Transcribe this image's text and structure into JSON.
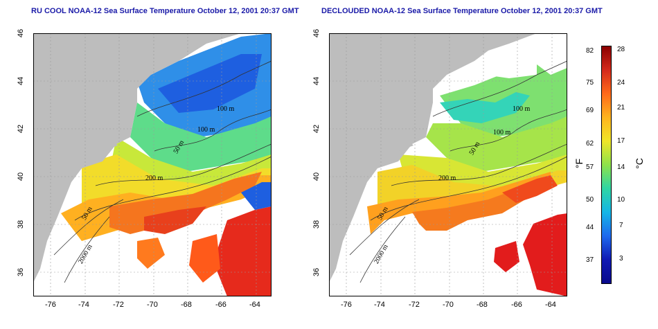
{
  "titles": {
    "left": "RU COOL NOAA-12 Sea Surface Temperature October 12, 2001 20:37 GMT",
    "right": "DECLOUDED NOAA-12 Sea Surface Temperature October 12, 2001 20:37 GMT"
  },
  "axes": {
    "lon_ticks": [
      "-76",
      "-74",
      "-72",
      "-70",
      "-68",
      "-66",
      "-64"
    ],
    "lat_ticks": [
      "46",
      "44",
      "42",
      "40",
      "38",
      "36"
    ]
  },
  "contours": {
    "c100a": "100 m",
    "c100b": "100 m",
    "c50": "50 m",
    "c200": "200 m",
    "c50s": "50 m",
    "c2000": "2000 m"
  },
  "colorbar": {
    "fahrenheit_ticks": [
      "82",
      "75",
      "69",
      "62",
      "57",
      "50",
      "44",
      "37"
    ],
    "celsius_ticks": [
      "28",
      "24",
      "21",
      "17",
      "14",
      "10",
      "7",
      "3"
    ],
    "fahrenheit_unit": "°F",
    "celsius_unit": "°C",
    "colors": [
      "#8b0000",
      "#d42a1c",
      "#ff6a1a",
      "#ffb41e",
      "#f0e628",
      "#8ee24a",
      "#2fd6a4",
      "#14b6e6",
      "#1e6aee",
      "#101ab4",
      "#0a0a8c"
    ]
  },
  "colors": {
    "land": "#bdbdbd",
    "title": "#1a1aa8"
  }
}
